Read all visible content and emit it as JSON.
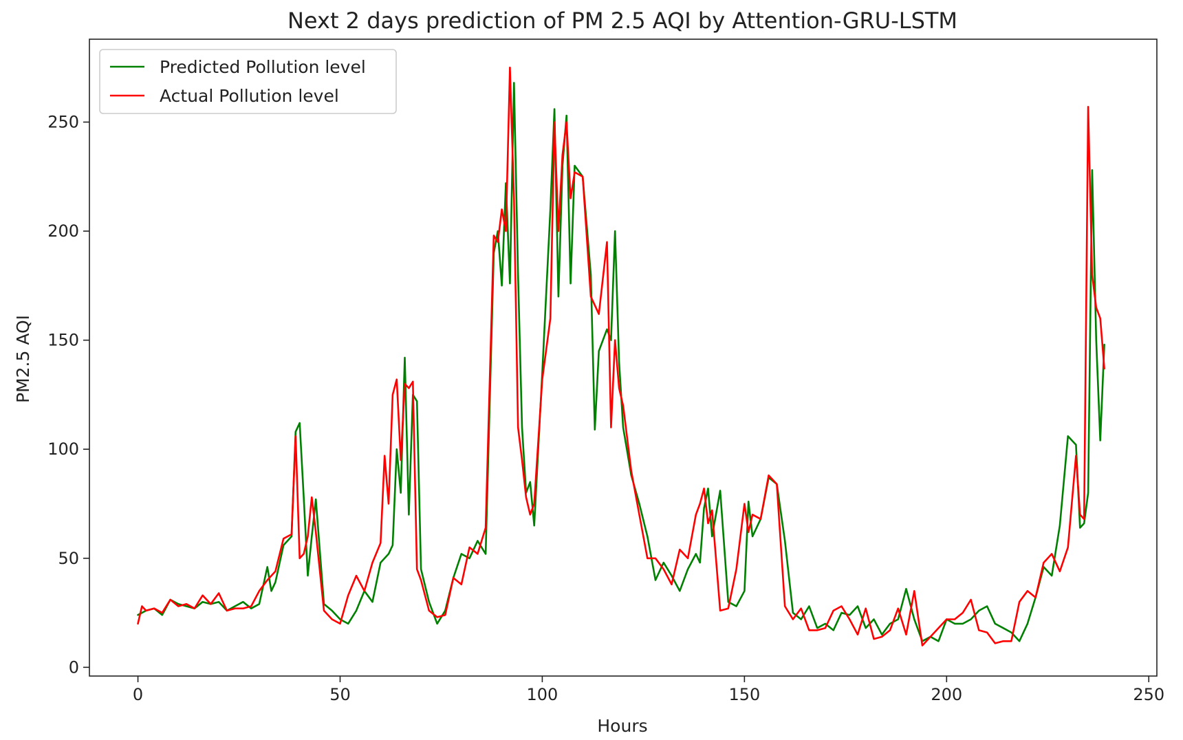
{
  "chart_data": {
    "type": "line",
    "title": "Next 2 days prediction of PM 2.5 AQI by Attention-GRU-LSTM",
    "xlabel": "Hours",
    "ylabel": "PM2.5 AQI",
    "xlim": [
      -12,
      252
    ],
    "ylim": [
      -4,
      288
    ],
    "xticks": [
      0,
      50,
      100,
      150,
      200,
      250
    ],
    "yticks": [
      0,
      50,
      100,
      150,
      200,
      250
    ],
    "grid": false,
    "legend_position": "top-left",
    "series": [
      {
        "name": "Predicted Pollution level",
        "color": "#008000",
        "x": [
          0,
          2,
          4,
          6,
          8,
          10,
          12,
          14,
          16,
          18,
          20,
          22,
          24,
          26,
          28,
          30,
          32,
          33,
          34,
          36,
          38,
          39,
          40,
          41,
          42,
          43,
          44,
          46,
          48,
          50,
          52,
          54,
          56,
          58,
          60,
          62,
          63,
          64,
          65,
          66,
          67,
          68,
          69,
          70,
          72,
          74,
          76,
          78,
          80,
          82,
          84,
          86,
          88,
          89,
          90,
          91,
          92,
          93,
          94,
          95,
          96,
          97,
          98,
          100,
          102,
          103,
          104,
          105,
          106,
          107,
          108,
          110,
          112,
          113,
          114,
          116,
          117,
          118,
          119,
          120,
          122,
          124,
          126,
          128,
          130,
          132,
          134,
          136,
          138,
          139,
          140,
          141,
          142,
          144,
          146,
          148,
          150,
          151,
          152,
          154,
          156,
          158,
          160,
          162,
          164,
          166,
          168,
          170,
          172,
          174,
          176,
          178,
          180,
          182,
          184,
          186,
          188,
          190,
          192,
          194,
          196,
          198,
          200,
          202,
          204,
          206,
          208,
          210,
          212,
          214,
          216,
          218,
          220,
          222,
          224,
          226,
          228,
          230,
          232,
          233,
          234,
          235,
          236,
          237,
          238,
          239
        ],
        "values": [
          24,
          26,
          27,
          24,
          31,
          29,
          28,
          27,
          30,
          29,
          30,
          26,
          28,
          30,
          27,
          29,
          46,
          35,
          39,
          56,
          60,
          108,
          112,
          78,
          42,
          60,
          77,
          29,
          26,
          22,
          20,
          26,
          35,
          30,
          48,
          52,
          56,
          100,
          80,
          142,
          70,
          125,
          122,
          45,
          30,
          20,
          26,
          41,
          52,
          50,
          58,
          52,
          190,
          200,
          175,
          222,
          176,
          268,
          180,
          110,
          80,
          85,
          65,
          135,
          210,
          256,
          170,
          230,
          253,
          176,
          230,
          225,
          180,
          109,
          145,
          155,
          150,
          200,
          140,
          110,
          88,
          75,
          60,
          40,
          48,
          42,
          35,
          45,
          52,
          48,
          73,
          82,
          60,
          81,
          30,
          28,
          35,
          76,
          60,
          68,
          87,
          84,
          58,
          25,
          22,
          28,
          18,
          20,
          17,
          25,
          24,
          28,
          18,
          22,
          15,
          20,
          22,
          36,
          22,
          12,
          14,
          12,
          22,
          20,
          20,
          22,
          26,
          28,
          20,
          18,
          16,
          12,
          20,
          32,
          46,
          42,
          65,
          106,
          102,
          64,
          66,
          80,
          228,
          150,
          104,
          148
        ]
      },
      {
        "name": "Actual Pollution level",
        "color": "#ff0000",
        "x": [
          0,
          1,
          2,
          4,
          6,
          8,
          10,
          12,
          14,
          16,
          18,
          20,
          22,
          24,
          26,
          28,
          30,
          32,
          34,
          36,
          38,
          39,
          40,
          41,
          42,
          43,
          44,
          46,
          48,
          50,
          52,
          54,
          56,
          58,
          60,
          61,
          62,
          63,
          64,
          65,
          66,
          67,
          68,
          69,
          70,
          72,
          74,
          76,
          78,
          80,
          82,
          84,
          86,
          88,
          89,
          90,
          91,
          92,
          93,
          94,
          95,
          96,
          97,
          98,
          100,
          102,
          103,
          104,
          105,
          106,
          107,
          108,
          110,
          112,
          114,
          116,
          117,
          118,
          119,
          120,
          122,
          124,
          126,
          128,
          130,
          132,
          134,
          136,
          138,
          139,
          140,
          141,
          142,
          144,
          146,
          148,
          150,
          151,
          152,
          154,
          156,
          158,
          160,
          162,
          164,
          166,
          168,
          170,
          172,
          174,
          176,
          178,
          180,
          182,
          184,
          186,
          188,
          190,
          192,
          194,
          196,
          198,
          200,
          202,
          204,
          206,
          208,
          210,
          212,
          214,
          216,
          218,
          220,
          222,
          224,
          226,
          228,
          230,
          232,
          233,
          234,
          235,
          236,
          237,
          238,
          239
        ],
        "values": [
          20,
          28,
          26,
          27,
          25,
          31,
          28,
          29,
          27,
          33,
          29,
          34,
          26,
          27,
          27,
          28,
          35,
          40,
          44,
          59,
          61,
          106,
          50,
          52,
          60,
          78,
          62,
          26,
          22,
          20,
          33,
          42,
          35,
          48,
          57,
          97,
          75,
          125,
          132,
          95,
          130,
          128,
          131,
          45,
          40,
          26,
          23,
          24,
          41,
          38,
          55,
          52,
          64,
          198,
          195,
          210,
          200,
          275,
          215,
          110,
          95,
          78,
          70,
          75,
          132,
          160,
          250,
          200,
          235,
          250,
          215,
          227,
          225,
          170,
          162,
          195,
          110,
          150,
          128,
          120,
          90,
          70,
          50,
          50,
          45,
          38,
          54,
          50,
          70,
          75,
          82,
          66,
          72,
          26,
          27,
          45,
          75,
          62,
          70,
          68,
          88,
          84,
          28,
          22,
          27,
          17,
          17,
          18,
          26,
          28,
          22,
          15,
          27,
          13,
          14,
          17,
          27,
          15,
          35,
          10,
          14,
          18,
          22,
          22,
          25,
          31,
          17,
          16,
          11,
          12,
          12,
          30,
          35,
          32,
          48,
          52,
          44,
          55,
          97,
          70,
          68,
          257,
          180,
          165,
          160,
          137
        ]
      }
    ]
  }
}
